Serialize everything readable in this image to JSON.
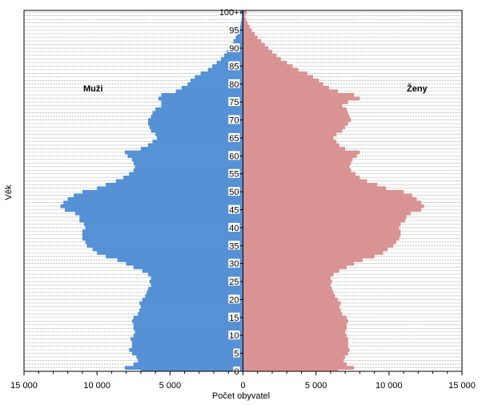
{
  "chart_data": {
    "type": "bar",
    "orientation": "horizontal-population-pyramid",
    "xlabel": "Počet obyvatel",
    "ylabel": "Věk",
    "xlim": [
      -15000,
      15000
    ],
    "x_tick_values": [
      -15000,
      -10000,
      -5000,
      0,
      5000,
      10000,
      15000
    ],
    "x_tick_labels": [
      "15 000",
      "10 000",
      "5 000",
      "0",
      "5 000",
      "10 000",
      "15 000"
    ],
    "age_tick_values": [
      0,
      5,
      10,
      15,
      20,
      25,
      30,
      35,
      40,
      45,
      50,
      55,
      60,
      65,
      70,
      75,
      80,
      85,
      90,
      95,
      100
    ],
    "age_tick_labels": [
      "0",
      "5",
      "10",
      "15",
      "20",
      "25",
      "30",
      "35",
      "40",
      "45",
      "50",
      "55",
      "60",
      "65",
      "70",
      "75",
      "80",
      "85",
      "90",
      "95",
      "100+"
    ],
    "grid": "horizontal dotted",
    "ages": [
      0,
      1,
      2,
      3,
      4,
      5,
      6,
      7,
      8,
      9,
      10,
      11,
      12,
      13,
      14,
      15,
      16,
      17,
      18,
      19,
      20,
      21,
      22,
      23,
      24,
      25,
      26,
      27,
      28,
      29,
      30,
      31,
      32,
      33,
      34,
      35,
      36,
      37,
      38,
      39,
      40,
      41,
      42,
      43,
      44,
      45,
      46,
      47,
      48,
      49,
      50,
      51,
      52,
      53,
      54,
      55,
      56,
      57,
      58,
      59,
      60,
      61,
      62,
      63,
      64,
      65,
      66,
      67,
      68,
      69,
      70,
      71,
      72,
      73,
      74,
      75,
      76,
      77,
      78,
      79,
      80,
      81,
      82,
      83,
      84,
      85,
      86,
      87,
      88,
      89,
      90,
      91,
      92,
      93,
      94,
      95,
      96,
      97,
      98,
      99,
      100
    ],
    "series": [
      {
        "name": "Muži",
        "color": "#5591d4",
        "values": [
          7000,
          8100,
          7500,
          7200,
          7300,
          7600,
          7800,
          7600,
          7600,
          7700,
          7500,
          7400,
          7500,
          7500,
          7600,
          7500,
          7200,
          7100,
          7000,
          7100,
          6900,
          6700,
          6600,
          6500,
          6300,
          6400,
          6300,
          6500,
          6900,
          7500,
          8000,
          8600,
          9400,
          10000,
          10300,
          10700,
          10800,
          11000,
          11000,
          11000,
          10800,
          10900,
          11200,
          11200,
          11500,
          12200,
          12500,
          12300,
          12000,
          11600,
          11000,
          10000,
          9400,
          8700,
          8200,
          7800,
          7500,
          7400,
          7500,
          7600,
          7900,
          8100,
          7000,
          6500,
          6200,
          5900,
          6000,
          6300,
          6400,
          6500,
          6500,
          6300,
          6200,
          6000,
          5600,
          5600,
          5800,
          5600,
          4600,
          4200,
          3800,
          3600,
          3300,
          2900,
          2400,
          2100,
          1800,
          1500,
          1300,
          1100,
          950,
          800,
          650,
          500,
          380,
          280,
          200,
          150,
          100,
          70,
          200
        ]
      },
      {
        "name": "Ženy",
        "color": "#d99393",
        "values": [
          6500,
          7600,
          7100,
          6900,
          7000,
          7200,
          7300,
          7200,
          7200,
          7200,
          7100,
          7000,
          7100,
          7100,
          7200,
          7100,
          6800,
          6700,
          6600,
          6700,
          6500,
          6300,
          6200,
          6100,
          6000,
          6100,
          6000,
          6200,
          6600,
          7100,
          7600,
          8200,
          9000,
          9600,
          9900,
          10300,
          10500,
          10700,
          10800,
          10800,
          10700,
          10800,
          11100,
          11200,
          11500,
          12200,
          12400,
          12200,
          11900,
          11600,
          11000,
          9800,
          9200,
          8500,
          8000,
          7700,
          7400,
          7300,
          7400,
          7500,
          7800,
          8000,
          7000,
          6600,
          6400,
          6200,
          6400,
          6800,
          7000,
          7200,
          7400,
          7300,
          7200,
          7100,
          6800,
          7200,
          8000,
          7600,
          6500,
          5900,
          5500,
          5200,
          4800,
          4400,
          3800,
          3400,
          3000,
          2600,
          2300,
          2000,
          1750,
          1500,
          1250,
          1000,
          800,
          600,
          450,
          320,
          220,
          150,
          250
        ]
      }
    ],
    "annotations": [
      "Muži",
      "Ženy"
    ]
  }
}
